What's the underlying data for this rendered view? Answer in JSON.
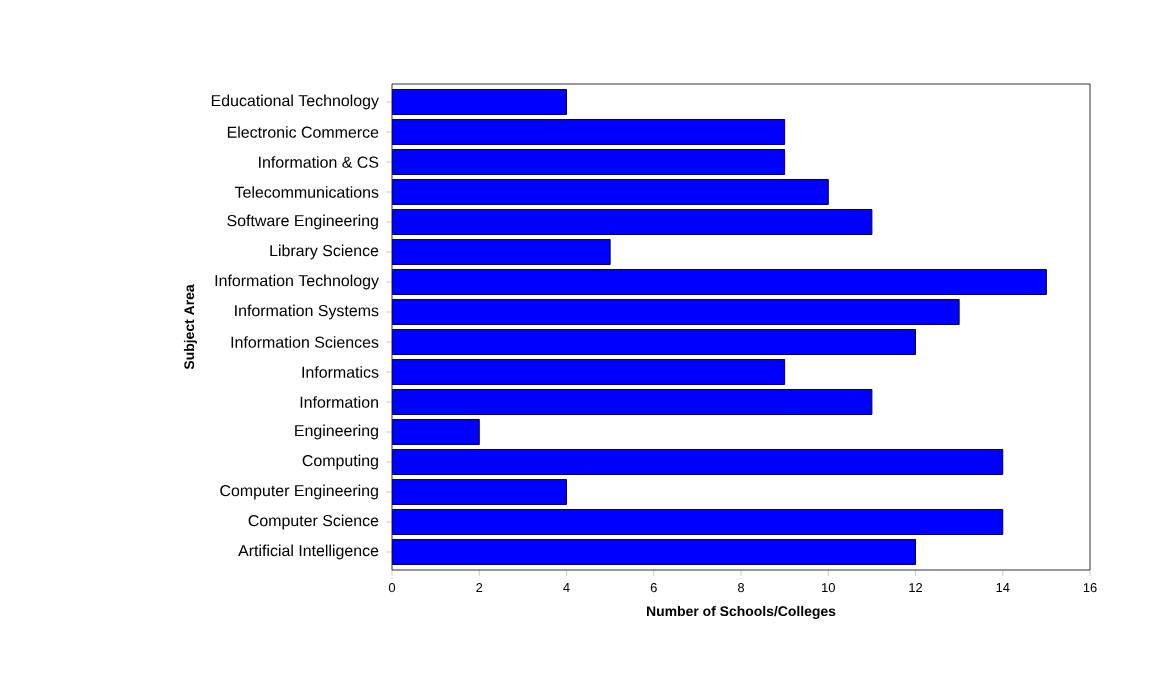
{
  "chart_data": {
    "type": "bar",
    "orientation": "horizontal",
    "xlabel": "Number of Schools/Colleges",
    "ylabel": "Subject Area",
    "categories": [
      "Educational Technology",
      "Electronic Commerce",
      "Information & CS",
      "Telecommunications",
      "Software Engineering",
      "Library Science",
      "Information Technology",
      "Information Systems",
      "Information Sciences",
      "Informatics",
      "Information",
      "Engineering",
      "Computing",
      "Computer Engineering",
      "Computer Science",
      "Artificial Intelligence"
    ],
    "values": [
      4,
      9,
      9,
      10,
      11,
      5,
      15,
      13,
      12,
      9,
      11,
      2,
      14,
      4,
      14,
      12
    ],
    "color": "#0000ff",
    "xlim": [
      0,
      16
    ],
    "xticks": [
      0,
      2,
      4,
      6,
      8,
      10,
      12,
      14,
      16
    ]
  }
}
